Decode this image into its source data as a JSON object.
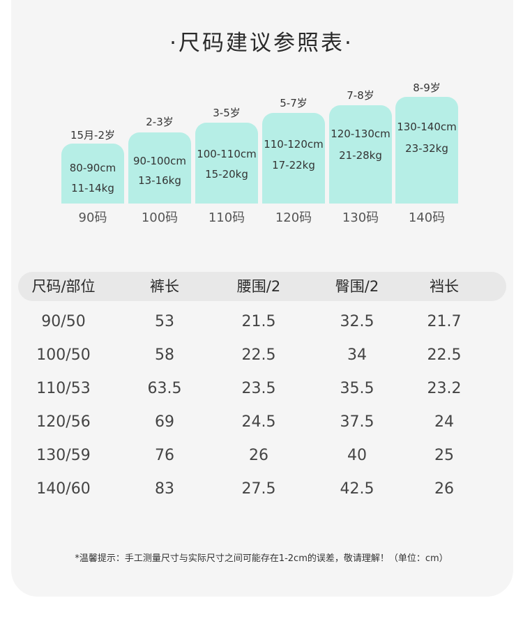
{
  "title": "·尺码建议参照表·",
  "size_chart": [
    {
      "age": "15月-2岁",
      "height": "80-90cm",
      "weight": "11-14kg",
      "code": "90码"
    },
    {
      "age": "2-3岁",
      "height": "90-100cm",
      "weight": "13-16kg",
      "code": "100码"
    },
    {
      "age": "3-5岁",
      "height": "100-110cm",
      "weight": "15-20kg",
      "code": "110码"
    },
    {
      "age": "5-7岁",
      "height": "110-120cm",
      "weight": "17-22kg",
      "code": "120码"
    },
    {
      "age": "7-8岁",
      "height": "120-130cm",
      "weight": "21-28kg",
      "code": "130码"
    },
    {
      "age": "8-9岁",
      "height": "130-140cm",
      "weight": "23-32kg",
      "code": "140码"
    }
  ],
  "table": {
    "headers": [
      "尺码/部位",
      "裤长",
      "腰围/2",
      "臀围/2",
      "裆长"
    ],
    "rows": [
      [
        "90/50",
        "53",
        "21.5",
        "32.5",
        "21.7"
      ],
      [
        "100/50",
        "58",
        "22.5",
        "34",
        "22.5"
      ],
      [
        "110/53",
        "63.5",
        "23.5",
        "35.5",
        "23.2"
      ],
      [
        "120/56",
        "69",
        "24.5",
        "37.5",
        "24"
      ],
      [
        "130/59",
        "76",
        "26",
        "40",
        "25"
      ],
      [
        "140/60",
        "83",
        "27.5",
        "42.5",
        "26"
      ]
    ]
  },
  "note": "*温馨提示：手工测量尺寸与实际尺寸之间可能存在1-2cm的误差，敬请理解！（单位：cm）",
  "colors": {
    "bar": "#b6eee6",
    "background": "#f5f5f5",
    "header_bg": "#e8e8e8"
  }
}
